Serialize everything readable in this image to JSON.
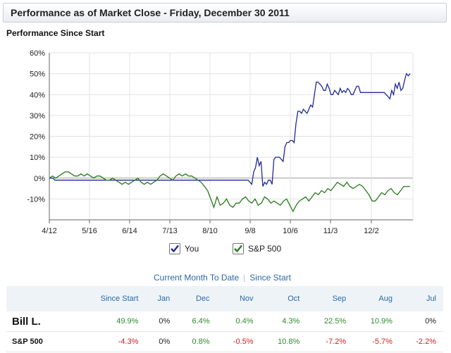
{
  "header": {
    "title": "Performance as of Market Close - Friday, December 30 2011"
  },
  "subtitle": "Performance Since Start",
  "colors": {
    "you": "#1f2a99",
    "sp500": "#2a7a1e",
    "positive": "#2e8b2e",
    "negative": "#cc2222",
    "link": "#2a6aa6"
  },
  "legend": [
    {
      "label": "You",
      "icon": "check-icon",
      "color": "#1f2a99"
    },
    {
      "label": "S&P 500",
      "icon": "check-icon",
      "color": "#2a7a1e"
    }
  ],
  "links": {
    "month": "Current Month To Date",
    "since": "Since Start"
  },
  "table": {
    "headers": [
      "",
      "Since Start",
      "Jan",
      "Dec",
      "Nov",
      "Oct",
      "Sep",
      "Aug",
      "Jul"
    ],
    "rows": [
      {
        "name": "Bill L.",
        "values": [
          "49.9%",
          "0%",
          "6.4%",
          "0.4%",
          "4.3%",
          "22.5%",
          "10.9%",
          "0%"
        ]
      },
      {
        "name": "S&P 500",
        "values": [
          "-4.3%",
          "0%",
          "0.8%",
          "-0.5%",
          "10.8%",
          "-7.2%",
          "-5.7%",
          "-2.2%"
        ]
      }
    ]
  },
  "chart_data": {
    "type": "line",
    "ylim": [
      -20,
      60
    ],
    "yticks": [
      "60%",
      "50%",
      "40%",
      "30%",
      "20%",
      "10%",
      "0%",
      "-10%"
    ],
    "xticks": [
      "4/12",
      "5/16",
      "6/14",
      "7/13",
      "8/10",
      "9/8",
      "10/6",
      "11/3",
      "12/2"
    ],
    "grid": true,
    "series": [
      {
        "name": "You",
        "values": [
          0,
          0,
          0,
          -1,
          -1,
          -1,
          -1,
          -1,
          -1,
          -1,
          -1,
          -1,
          -1,
          -1,
          -1,
          -1,
          -1,
          -1,
          -1,
          -1,
          -1,
          -1,
          -1,
          -1,
          -1,
          -1,
          -1,
          -1,
          -1,
          -1,
          -1,
          -1,
          -1,
          -1,
          -1,
          -1,
          -1,
          -1,
          -1,
          -1,
          -1,
          -1,
          -1,
          -1,
          -1,
          -1,
          -1,
          -1,
          -1,
          -1,
          -1,
          -1,
          -1,
          -1,
          -1,
          -1,
          -1,
          -1,
          -1,
          -1,
          -1,
          -1,
          -1,
          -1,
          -1,
          -1,
          -1,
          -1,
          -1,
          -1,
          -1,
          -1,
          -1,
          -1,
          -1,
          -1,
          -1,
          -1,
          -1,
          -1,
          -1,
          -1,
          -1,
          -1,
          -1,
          -1,
          -1,
          -1,
          -1,
          -1,
          -1,
          -1,
          -1,
          -1,
          -1,
          -1,
          -1,
          -1,
          -1,
          -1,
          -1,
          -1,
          -1,
          -1,
          -1,
          -1,
          -1,
          -1,
          -1,
          -2,
          -3,
          3,
          5,
          10,
          6,
          8,
          -4,
          -2,
          -3,
          -1,
          -1,
          -3,
          9,
          10,
          10,
          10,
          9,
          8,
          15,
          17,
          17,
          18,
          18,
          17,
          26,
          32,
          32,
          31,
          33,
          32,
          31,
          33,
          35,
          34,
          40,
          46,
          46,
          45,
          44,
          42,
          42,
          45,
          43,
          40,
          40,
          42,
          41,
          40,
          43,
          41,
          42,
          41,
          43,
          42,
          40,
          40,
          42,
          44,
          44,
          41,
          41,
          41,
          41,
          41,
          41,
          41,
          41,
          41,
          41,
          41,
          41,
          41,
          41,
          40,
          39,
          38,
          42,
          40,
          45,
          43,
          46,
          42,
          43,
          47,
          50,
          49,
          50
        ]
      },
      {
        "name": "S&P 500",
        "values": [
          0,
          1,
          0,
          1,
          2,
          3,
          3,
          2,
          1,
          1,
          2,
          1,
          2,
          1,
          0,
          1,
          1,
          0,
          -1,
          -1,
          0,
          -1,
          -2,
          -3,
          -2,
          -3,
          -2,
          -1,
          0,
          -2,
          -3,
          -2,
          -3,
          -2,
          -1,
          1,
          2,
          1,
          0,
          -1,
          1,
          2,
          1,
          2,
          1,
          1,
          0,
          -1,
          -2,
          -4,
          -6,
          -10,
          -14,
          -9,
          -13,
          -12,
          -10,
          -13,
          -14,
          -12,
          -12,
          -10,
          -9,
          -11,
          -12,
          -10,
          -13,
          -12,
          -9,
          -10,
          -12,
          -11,
          -12,
          -13,
          -11,
          -10,
          -13,
          -16,
          -13,
          -11,
          -10,
          -9,
          -11,
          -9,
          -7,
          -8,
          -6,
          -7,
          -5,
          -6,
          -4,
          -2,
          -3,
          -4,
          -2,
          -4,
          -5,
          -4,
          -3,
          -4,
          -6,
          -8,
          -11,
          -11,
          -9,
          -7,
          -8,
          -6,
          -5,
          -7,
          -8,
          -6,
          -4,
          -4,
          -4
        ]
      }
    ]
  }
}
